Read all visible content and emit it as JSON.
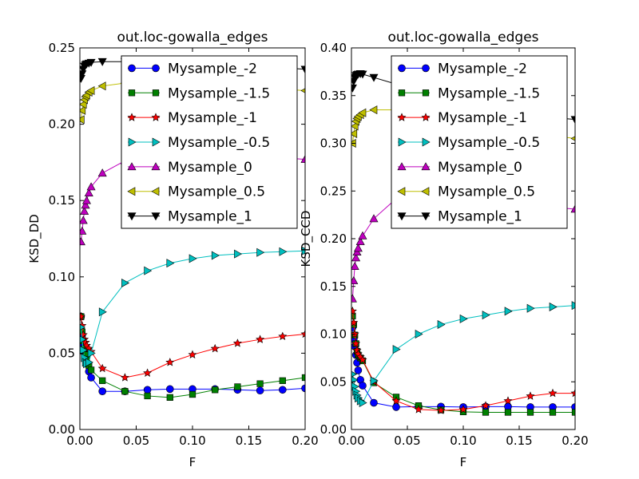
{
  "chart_data": [
    {
      "type": "line",
      "title": "out.loc-gowalla_edges",
      "xlabel": "F",
      "ylabel": "KSD_DD",
      "xlim": [
        0.0,
        0.2
      ],
      "ylim": [
        0.0,
        0.25
      ],
      "xticks": [
        "0.00",
        "0.05",
        "0.10",
        "0.15",
        "0.20"
      ],
      "yticks": [
        "0.00",
        "0.05",
        "0.10",
        "0.15",
        "0.20",
        "0.25"
      ],
      "grid": false,
      "legend_position": "upper-right",
      "x": [
        0.001,
        0.002,
        0.003,
        0.004,
        0.005,
        0.006,
        0.008,
        0.01,
        0.02,
        0.04,
        0.06,
        0.08,
        0.1,
        0.12,
        0.14,
        0.16,
        0.18,
        0.2
      ],
      "series": [
        {
          "name": "Mysample_-2",
          "color": "#0000ff",
          "marker": "circle",
          "values": [
            0.074,
            0.062,
            0.055,
            0.05,
            0.046,
            0.043,
            0.038,
            0.034,
            0.025,
            0.025,
            0.026,
            0.0265,
            0.0265,
            0.0265,
            0.026,
            0.0255,
            0.026,
            0.027
          ]
        },
        {
          "name": "Mysample_-1.5",
          "color": "#008000",
          "marker": "square",
          "values": [
            0.074,
            0.064,
            0.058,
            0.053,
            0.049,
            0.046,
            0.042,
            0.039,
            0.032,
            0.025,
            0.022,
            0.021,
            0.023,
            0.026,
            0.028,
            0.03,
            0.032,
            0.034
          ]
        },
        {
          "name": "Mysample_-1",
          "color": "#ff0000",
          "marker": "star",
          "values": [
            0.074,
            0.068,
            0.062,
            0.059,
            0.057,
            0.055,
            0.053,
            0.051,
            0.04,
            0.034,
            0.037,
            0.044,
            0.049,
            0.053,
            0.0565,
            0.059,
            0.061,
            0.0625
          ]
        },
        {
          "name": "Mysample_-0.5",
          "color": "#00bfbf",
          "marker": "triangle-right",
          "values": [
            0.067,
            0.059,
            0.052,
            0.047,
            0.044,
            0.043,
            0.044,
            0.05,
            0.077,
            0.096,
            0.104,
            0.109,
            0.112,
            0.114,
            0.115,
            0.116,
            0.1165,
            0.117
          ]
        },
        {
          "name": "Mysample_0",
          "color": "#bf00bf",
          "marker": "triangle-up",
          "values": [
            0.123,
            0.13,
            0.137,
            0.143,
            0.147,
            0.15,
            0.155,
            0.159,
            0.168,
            0.176,
            0.18,
            0.181,
            0.181,
            0.18,
            0.1795,
            0.179,
            0.178,
            0.177
          ]
        },
        {
          "name": "Mysample_0.5",
          "color": "#bfbf00",
          "marker": "triangle-left",
          "values": [
            0.203,
            0.209,
            0.213,
            0.216,
            0.218,
            0.219,
            0.221,
            0.222,
            0.225,
            0.227,
            0.228,
            0.227,
            0.226,
            0.225,
            0.224,
            0.224,
            0.223,
            0.222
          ]
        },
        {
          "name": "Mysample_1",
          "color": "#000000",
          "marker": "triangle-down",
          "values": [
            0.23,
            0.233,
            0.236,
            0.238,
            0.239,
            0.2395,
            0.24,
            0.2405,
            0.241,
            0.241,
            0.2405,
            0.24,
            0.2395,
            0.239,
            0.2385,
            0.238,
            0.237,
            0.236
          ]
        }
      ]
    },
    {
      "type": "line",
      "title": "out.loc-gowalla_edges",
      "xlabel": "F",
      "ylabel": "KSD_CCD",
      "xlim": [
        0.0,
        0.2
      ],
      "ylim": [
        0.0,
        0.4
      ],
      "xticks": [
        "0.00",
        "0.05",
        "0.10",
        "0.15",
        "0.20"
      ],
      "yticks": [
        "0.00",
        "0.05",
        "0.10",
        "0.15",
        "0.20",
        "0.25",
        "0.30",
        "0.35",
        "0.40"
      ],
      "grid": false,
      "legend_position": "upper-right",
      "x": [
        0.001,
        0.002,
        0.003,
        0.004,
        0.005,
        0.006,
        0.008,
        0.01,
        0.02,
        0.04,
        0.06,
        0.08,
        0.1,
        0.12,
        0.14,
        0.16,
        0.18,
        0.2
      ],
      "series": [
        {
          "name": "Mysample_-2",
          "color": "#0000ff",
          "marker": "circle",
          "values": [
            0.107,
            0.095,
            0.087,
            0.078,
            0.07,
            0.062,
            0.052,
            0.046,
            0.028,
            0.0235,
            0.024,
            0.024,
            0.0235,
            0.024,
            0.024,
            0.0235,
            0.0235,
            0.0235
          ]
        },
        {
          "name": "Mysample_-1.5",
          "color": "#008000",
          "marker": "square",
          "values": [
            0.119,
            0.11,
            0.099,
            0.09,
            0.082,
            0.078,
            0.075,
            0.072,
            0.049,
            0.034,
            0.025,
            0.0205,
            0.0185,
            0.018,
            0.018,
            0.018,
            0.018,
            0.018
          ]
        },
        {
          "name": "Mysample_-1",
          "color": "#ff0000",
          "marker": "star",
          "values": [
            0.124,
            0.112,
            0.1,
            0.09,
            0.083,
            0.079,
            0.076,
            0.073,
            0.05,
            0.03,
            0.021,
            0.02,
            0.021,
            0.025,
            0.03,
            0.035,
            0.038,
            0.038
          ]
        },
        {
          "name": "Mysample_-0.5",
          "color": "#00bfbf",
          "marker": "triangle-right",
          "values": [
            0.058,
            0.052,
            0.045,
            0.04,
            0.036,
            0.033,
            0.03,
            0.028,
            0.051,
            0.084,
            0.1,
            0.11,
            0.116,
            0.12,
            0.124,
            0.127,
            0.1285,
            0.13
          ]
        },
        {
          "name": "Mysample_0",
          "color": "#bf00bf",
          "marker": "triangle-up",
          "values": [
            0.137,
            0.156,
            0.171,
            0.18,
            0.186,
            0.19,
            0.197,
            0.203,
            0.221,
            0.242,
            0.252,
            0.254,
            0.252,
            0.248,
            0.242,
            0.237,
            0.233,
            0.231
          ]
        },
        {
          "name": "Mysample_0.5",
          "color": "#bfbf00",
          "marker": "triangle-left",
          "values": [
            0.3,
            0.31,
            0.318,
            0.323,
            0.326,
            0.328,
            0.33,
            0.332,
            0.335,
            0.335,
            0.333,
            0.33,
            0.325,
            0.32,
            0.315,
            0.311,
            0.308,
            0.305
          ]
        },
        {
          "name": "Mysample_1",
          "color": "#000000",
          "marker": "triangle-down",
          "values": [
            0.358,
            0.365,
            0.369,
            0.371,
            0.372,
            0.3725,
            0.373,
            0.3725,
            0.369,
            0.362,
            0.355,
            0.348,
            0.342,
            0.337,
            0.332,
            0.329,
            0.327,
            0.325
          ]
        }
      ]
    }
  ]
}
